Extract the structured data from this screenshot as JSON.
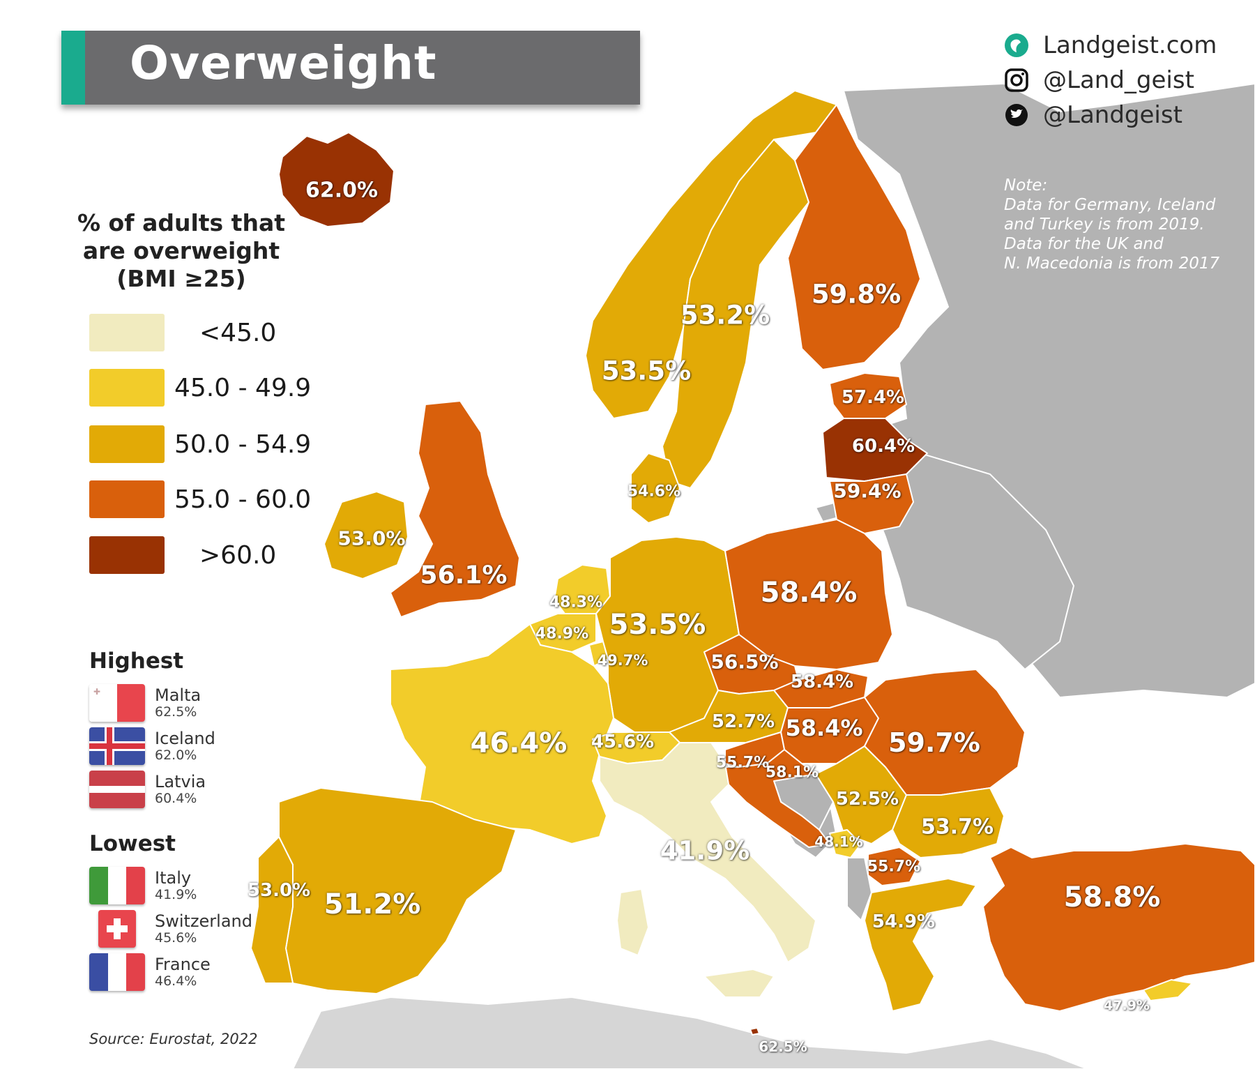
{
  "title": "Overweight",
  "social": {
    "website": "Landgeist.com",
    "instagram": "@Land_geist",
    "twitter": "@Landgeist"
  },
  "note": {
    "line1": "Note:",
    "line2": "Data for Germany, Iceland",
    "line3": "and Turkey is from 2019.",
    "line4": "Data for the UK and",
    "line5": "N. Macedonia is from 2017"
  },
  "legend": {
    "title_line1": "% of adults that",
    "title_line2": "are overweight",
    "title_line3": "(BMI ≥25)",
    "items": [
      {
        "label": "<45.0",
        "color": "#f1ebbf"
      },
      {
        "label": "45.0 - 49.9",
        "color": "#f2cc2a"
      },
      {
        "label": "50.0 - 54.9",
        "color": "#e2aa06"
      },
      {
        "label": "55.0 - 60.0",
        "color": "#d9600c"
      },
      {
        "label": ">60.0",
        "color": "#993203"
      }
    ]
  },
  "highest": {
    "heading": "Highest",
    "items": [
      {
        "name": "Malta",
        "value": "62.5%"
      },
      {
        "name": "Iceland",
        "value": "62.0%"
      },
      {
        "name": "Latvia",
        "value": "60.4%"
      }
    ]
  },
  "lowest": {
    "heading": "Lowest",
    "items": [
      {
        "name": "Italy",
        "value": "41.9%"
      },
      {
        "name": "Switzerland",
        "value": "45.6%"
      },
      {
        "name": "France",
        "value": "46.4%"
      }
    ]
  },
  "source": "Source: Eurostat, 2022",
  "colors": {
    "nodata": "#b3b3b3",
    "sea": "#ffffff",
    "accent": "#1aab8e",
    "titlebar": "#6b6b6d"
  },
  "countries": [
    {
      "id": "iceland",
      "label": "62.0%",
      "value": 62.0
    },
    {
      "id": "ireland",
      "label": "53.0%",
      "value": 53.0
    },
    {
      "id": "uk",
      "label": "56.1%",
      "value": 56.1
    },
    {
      "id": "norway",
      "label": "53.5%",
      "value": 53.5
    },
    {
      "id": "sweden",
      "label": "53.2%",
      "value": 53.2
    },
    {
      "id": "finland",
      "label": "59.8%",
      "value": 59.8
    },
    {
      "id": "estonia",
      "label": "57.4%",
      "value": 57.4
    },
    {
      "id": "latvia",
      "label": "60.4%",
      "value": 60.4
    },
    {
      "id": "lithuania",
      "label": "59.4%",
      "value": 59.4
    },
    {
      "id": "denmark",
      "label": "54.6%",
      "value": 54.6
    },
    {
      "id": "netherlands",
      "label": "48.3%",
      "value": 48.3
    },
    {
      "id": "belgium",
      "label": "48.9%",
      "value": 48.9
    },
    {
      "id": "luxembourg",
      "label": "49.7%",
      "value": 49.7
    },
    {
      "id": "germany",
      "label": "53.5%",
      "value": 53.5
    },
    {
      "id": "poland",
      "label": "58.4%",
      "value": 58.4
    },
    {
      "id": "czechia",
      "label": "56.5%",
      "value": 56.5
    },
    {
      "id": "slovakia",
      "label": "58.4%",
      "value": 58.4
    },
    {
      "id": "austria",
      "label": "52.7%",
      "value": 52.7
    },
    {
      "id": "hungary",
      "label": "58.4%",
      "value": 58.4
    },
    {
      "id": "slovenia",
      "label": "55.7%",
      "value": 55.7
    },
    {
      "id": "croatia",
      "label": "58.1%",
      "value": 58.1
    },
    {
      "id": "serbia",
      "label": "52.5%",
      "value": 52.5
    },
    {
      "id": "romania",
      "label": "59.7%",
      "value": 59.7
    },
    {
      "id": "bulgaria",
      "label": "53.7%",
      "value": 53.7
    },
    {
      "id": "montenegro",
      "label": "48.1%",
      "value": 48.1
    },
    {
      "id": "north-macedonia",
      "label": "55.7%",
      "value": 55.7
    },
    {
      "id": "greece",
      "label": "54.9%",
      "value": 54.9
    },
    {
      "id": "turkey",
      "label": "58.8%",
      "value": 58.8
    },
    {
      "id": "cyprus",
      "label": "47.9%",
      "value": 47.9
    },
    {
      "id": "malta",
      "label": "62.5%",
      "value": 62.5
    },
    {
      "id": "france",
      "label": "46.4%",
      "value": 46.4
    },
    {
      "id": "switzerland",
      "label": "45.6%",
      "value": 45.6
    },
    {
      "id": "italy",
      "label": "41.9%",
      "value": 41.9
    },
    {
      "id": "spain",
      "label": "51.2%",
      "value": 51.2
    },
    {
      "id": "portugal",
      "label": "53.0%",
      "value": 53.0
    }
  ]
}
